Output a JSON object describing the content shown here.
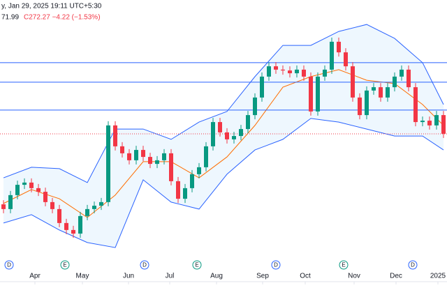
{
  "chart_data": {
    "type": "candlestick",
    "header": "y, Jan 29, 2025 19:11 UTC+5:30",
    "ohlc_prefix": "71.99",
    "ohlc_text": "C272.27 −4.22 (−1.53%)",
    "xlim": [
      0,
      64
    ],
    "ylim": [
      227.77,
      320.27
    ],
    "xticks": [
      {
        "value": 5,
        "label": "Apr"
      },
      {
        "value": 11.8,
        "label": "May"
      },
      {
        "value": 18.4,
        "label": "Jun"
      },
      {
        "value": 24.3,
        "label": "Jul"
      },
      {
        "value": 31,
        "label": "Aug"
      },
      {
        "value": 37.6,
        "label": "Sep"
      },
      {
        "value": 43.7,
        "label": "Oct"
      },
      {
        "value": 50.7,
        "label": "Nov"
      },
      {
        "value": 56.7,
        "label": "Dec"
      },
      {
        "value": 62.7,
        "label": "2025"
      }
    ],
    "up_color": "#089981",
    "down_color": "#f23645",
    "open": [
      247.0,
      245.3,
      250.3,
      254.0,
      254.8,
      252.8,
      251.5,
      247.8,
      245.3,
      240.3,
      237.8,
      236.5,
      242.8,
      245.3,
      246.5,
      247.8,
      275.3,
      267.8,
      265.3,
      262.8,
      266.5,
      264.0,
      261.5,
      262.8,
      265.3,
      255.3,
      249.0,
      252.8,
      257.8,
      260.3,
      267.8,
      276.5,
      272.8,
      270.3,
      271.5,
      274.0,
      279.0,
      285.3,
      292.8,
      296.5,
      295.3,
      295.0,
      294.0,
      295.3,
      292.8,
      280.3,
      292.8,
      295.3,
      305.3,
      301.5,
      296.5,
      285.3,
      279.0,
      287.8,
      289.0,
      285.3,
      289.0,
      292.8,
      295.3,
      289.0,
      276.5,
      277.0,
      275.3,
      279.0
    ],
    "high": [
      248.5,
      251.8,
      255.5,
      256.3,
      256.3,
      254.3,
      253.0,
      249.3,
      246.8,
      241.8,
      239.3,
      244.3,
      246.8,
      248.0,
      249.3,
      276.8,
      276.8,
      269.3,
      266.8,
      268.0,
      268.0,
      265.5,
      264.3,
      266.8,
      266.8,
      256.8,
      254.3,
      259.3,
      261.8,
      269.3,
      278.0,
      278.0,
      274.3,
      273.0,
      275.5,
      280.5,
      286.8,
      294.3,
      298.0,
      298.0,
      296.8,
      296.5,
      296.8,
      296.8,
      294.3,
      294.3,
      296.8,
      306.8,
      306.8,
      303.0,
      298.0,
      286.8,
      289.3,
      290.5,
      290.5,
      290.5,
      294.3,
      296.8,
      296.8,
      290.5,
      278.5,
      278.5,
      280.5,
      280.5
    ],
    "low": [
      243.8,
      243.8,
      248.8,
      252.5,
      251.3,
      250.0,
      246.3,
      243.8,
      238.8,
      236.3,
      235.0,
      235.0,
      241.3,
      243.8,
      245.0,
      246.3,
      266.3,
      263.8,
      261.3,
      261.3,
      262.5,
      260.0,
      260.0,
      261.3,
      253.8,
      247.5,
      247.5,
      251.3,
      256.3,
      258.8,
      266.3,
      271.3,
      268.8,
      268.8,
      270.0,
      272.5,
      277.5,
      283.8,
      291.3,
      293.8,
      293.5,
      292.5,
      292.5,
      291.3,
      278.8,
      278.8,
      291.3,
      293.8,
      300.0,
      295.0,
      283.8,
      277.5,
      277.5,
      286.3,
      283.8,
      283.8,
      287.5,
      291.3,
      287.5,
      275.0,
      275.0,
      273.8,
      273.8,
      270.8
    ],
    "close": [
      245.3,
      250.3,
      254.0,
      254.8,
      252.8,
      251.5,
      247.8,
      245.3,
      240.3,
      237.8,
      236.5,
      242.8,
      245.3,
      246.5,
      247.8,
      275.3,
      267.8,
      265.3,
      262.8,
      266.5,
      264.0,
      261.5,
      262.8,
      265.3,
      255.3,
      249.0,
      252.8,
      257.8,
      260.3,
      267.8,
      276.5,
      272.8,
      270.3,
      271.5,
      274.0,
      279.0,
      285.3,
      292.8,
      296.5,
      295.3,
      295.0,
      294.0,
      295.3,
      292.8,
      280.3,
      292.8,
      295.3,
      305.3,
      301.5,
      296.5,
      285.3,
      279.0,
      287.8,
      289.0,
      285.3,
      289.0,
      292.8,
      295.3,
      289.0,
      276.5,
      277.0,
      275.3,
      279.0,
      272.3
    ],
    "bands": {
      "x": [
        0,
        4,
        8,
        12,
        16,
        20,
        24,
        28,
        32,
        36,
        40,
        44,
        48,
        52,
        56,
        60,
        63
      ],
      "upper": [
        256.5,
        260.3,
        259.8,
        254.8,
        274.0,
        274.0,
        270.3,
        276.5,
        280.3,
        292.8,
        304.0,
        304.0,
        309.0,
        311.5,
        306.5,
        297.8,
        282.8
      ],
      "middle": [
        247.3,
        252.3,
        249.0,
        242.3,
        250.3,
        262.3,
        262.3,
        256.5,
        264.0,
        275.3,
        289.0,
        292.8,
        295.3,
        291.5,
        290.3,
        282.8,
        275.3
      ],
      "lower": [
        240.3,
        243.3,
        237.8,
        233.3,
        231.5,
        255.8,
        247.8,
        245.3,
        257.8,
        266.5,
        270.3,
        277.8,
        276.5,
        274.0,
        271.5,
        271.5,
        266.5
      ],
      "band_color": "#2962ff",
      "middle_color": "#ff6d00"
    },
    "levels": [
      297.8,
      290.8,
      280.8
    ],
    "level_color": "#2962ff",
    "price_line": 272.27,
    "events": [
      {
        "x": 1.3,
        "label": "D"
      },
      {
        "x": 9.3,
        "label": "E"
      },
      {
        "x": 20.7,
        "label": "D"
      },
      {
        "x": 28.2,
        "label": "E"
      },
      {
        "x": 39.5,
        "label": "D"
      },
      {
        "x": 49.2,
        "label": "E"
      },
      {
        "x": 59.1,
        "label": "D"
      }
    ]
  }
}
